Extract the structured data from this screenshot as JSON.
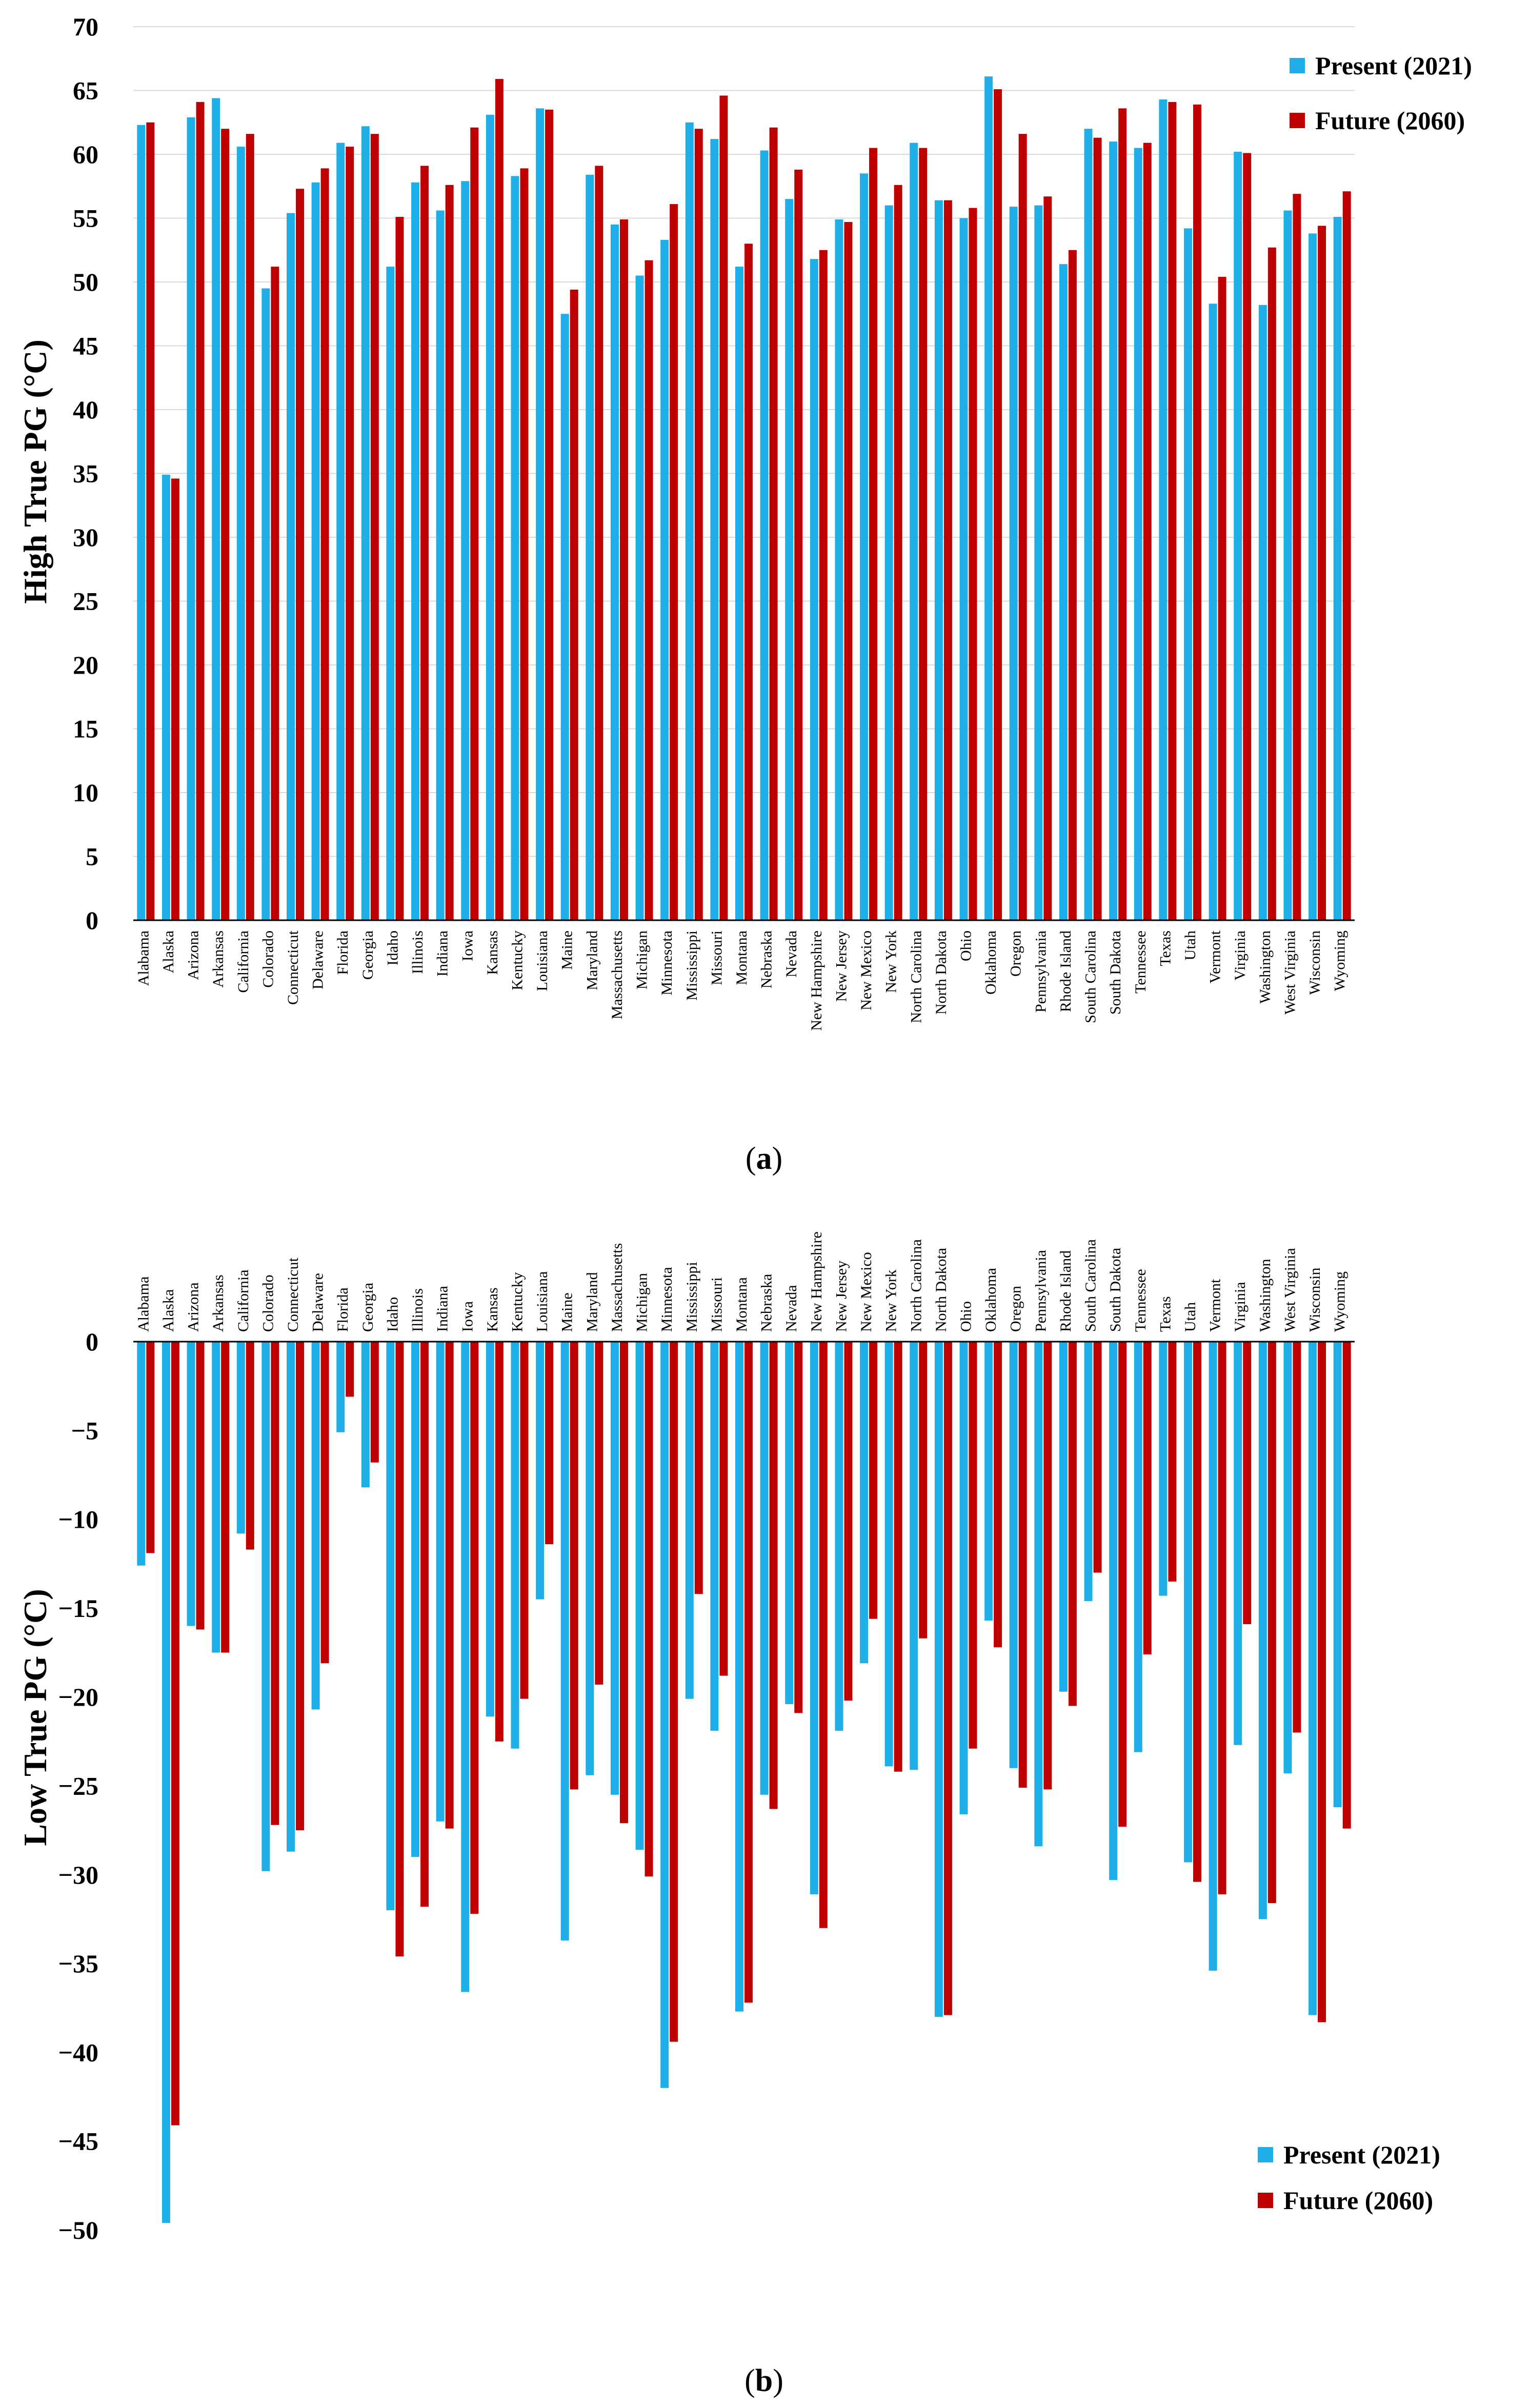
{
  "colors": {
    "present": "#1EAFE8",
    "future": "#C00000",
    "grid": "#D9D9D9",
    "axis": "#000000"
  },
  "captions": {
    "a_open": "(",
    "a_letter": "a",
    "a_close": ")",
    "b_open": "(",
    "b_letter": "b",
    "b_close": ")"
  },
  "chart_data": [
    {
      "type": "bar",
      "title": "",
      "ylabel": "High True PG (°C)",
      "xlabel": "",
      "ylim": [
        0,
        70
      ],
      "yticks": [
        0,
        5,
        10,
        15,
        20,
        25,
        30,
        35,
        40,
        45,
        50,
        55,
        60,
        65,
        70
      ],
      "grid": true,
      "legend_position": "top-right",
      "categories": [
        "Alabama",
        "Alaska",
        "Arizona",
        "Arkansas",
        "California",
        "Colorado",
        "Connecticut",
        "Delaware",
        "Florida",
        "Georgia",
        "Idaho",
        "Illinois",
        "Indiana",
        "Iowa",
        "Kansas",
        "Kentucky",
        "Louisiana",
        "Maine",
        "Maryland",
        "Massachusetts",
        "Michigan",
        "Minnesota",
        "Mississippi",
        "Missouri",
        "Montana",
        "Nebraska",
        "Nevada",
        "New Hampshire",
        "New Jersey",
        "New Mexico",
        "New York",
        "North Carolina",
        "North Dakota",
        "Ohio",
        "Oklahoma",
        "Oregon",
        "Pennsylvania",
        "Rhode Island",
        "South Carolina",
        "South Dakota",
        "Tennessee",
        "Texas",
        "Utah",
        "Vermont",
        "Virginia",
        "Washington",
        "West Virginia",
        "Wisconsin",
        "Wyoming"
      ],
      "series": [
        {
          "name": "Present (2021)",
          "values": [
            62.3,
            34.9,
            62.9,
            64.4,
            60.6,
            49.5,
            55.4,
            57.8,
            60.9,
            62.2,
            51.2,
            57.8,
            55.6,
            57.9,
            63.1,
            58.3,
            63.6,
            47.5,
            58.4,
            54.5,
            50.5,
            53.3,
            62.5,
            61.2,
            51.2,
            60.3,
            56.5,
            51.8,
            54.9,
            58.5,
            56.0,
            60.9,
            56.4,
            55.0,
            66.1,
            55.9,
            56.0,
            51.4,
            62.0,
            61.0,
            60.5,
            64.3,
            54.2,
            48.3,
            60.2,
            48.2,
            55.6,
            53.8,
            55.1
          ]
        },
        {
          "name": "Future (2060)",
          "values": [
            62.5,
            34.6,
            64.1,
            62.0,
            61.6,
            51.2,
            57.3,
            58.9,
            60.6,
            61.6,
            55.1,
            59.1,
            57.6,
            62.1,
            65.9,
            58.9,
            63.5,
            49.4,
            59.1,
            54.9,
            51.7,
            56.1,
            62.0,
            64.6,
            53.0,
            62.1,
            58.8,
            52.5,
            54.7,
            60.5,
            57.6,
            60.5,
            56.4,
            55.8,
            65.1,
            61.6,
            56.7,
            52.5,
            61.3,
            63.6,
            60.9,
            64.1,
            63.9,
            50.4,
            60.1,
            52.7,
            56.9,
            54.4,
            57.1
          ]
        }
      ]
    },
    {
      "type": "bar",
      "title": "",
      "ylabel": "Low True PG (°C)",
      "xlabel": "",
      "ylim": [
        -50,
        0
      ],
      "yticks": [
        0,
        -5,
        -10,
        -15,
        -20,
        -25,
        -30,
        -35,
        -40,
        -45,
        -50
      ],
      "grid": false,
      "legend_position": "bottom-right",
      "categories": [
        "Alabama",
        "Alaska",
        "Arizona",
        "Arkansas",
        "California",
        "Colorado",
        "Connecticut",
        "Delaware",
        "Florida",
        "Georgia",
        "Idaho",
        "Illinois",
        "Indiana",
        "Iowa",
        "Kansas",
        "Kentucky",
        "Louisiana",
        "Maine",
        "Maryland",
        "Massachusetts",
        "Michigan",
        "Minnesota",
        "Mississippi",
        "Missouri",
        "Montana",
        "Nebraska",
        "Nevada",
        "New Hampshire",
        "New Jersey",
        "New Mexico",
        "New York",
        "North Carolina",
        "North Dakota",
        "Ohio",
        "Oklahoma",
        "Oregon",
        "Pennsylvania",
        "Rhode Island",
        "South Carolina",
        "South Dakota",
        "Tennessee",
        "Texas",
        "Utah",
        "Vermont",
        "Virginia",
        "Washington",
        "West Virginia",
        "Wisconsin",
        "Wyoming"
      ],
      "series": [
        {
          "name": "Present (2021)",
          "values": [
            -12.6,
            -49.6,
            -16.0,
            -17.5,
            -10.8,
            -29.8,
            -28.7,
            -20.7,
            -5.1,
            -8.2,
            -32.0,
            -29.0,
            -27.0,
            -36.6,
            -21.1,
            -22.9,
            -14.5,
            -33.7,
            -24.4,
            -25.5,
            -28.6,
            -42.0,
            -20.1,
            -21.9,
            -37.7,
            -25.5,
            -20.4,
            -31.1,
            -21.9,
            -18.1,
            -23.9,
            -24.1,
            -38.0,
            -26.6,
            -15.7,
            -24.0,
            -28.4,
            -19.7,
            -14.6,
            -30.3,
            -23.1,
            -14.3,
            -29.3,
            -35.4,
            -22.7,
            -32.5,
            -24.3,
            -37.9,
            -26.2
          ]
        },
        {
          "name": "Future (2060)",
          "values": [
            -11.9,
            -44.1,
            -16.2,
            -17.5,
            -11.7,
            -27.2,
            -27.5,
            -18.1,
            -3.1,
            -6.8,
            -34.6,
            -31.8,
            -27.4,
            -32.2,
            -22.5,
            -20.1,
            -11.4,
            -25.2,
            -19.3,
            -27.1,
            -30.1,
            -39.4,
            -14.2,
            -18.8,
            -37.2,
            -26.3,
            -20.9,
            -33.0,
            -20.2,
            -15.6,
            -24.2,
            -16.7,
            -37.9,
            -22.9,
            -17.2,
            -25.1,
            -25.2,
            -20.5,
            -13.0,
            -27.3,
            -17.6,
            -13.5,
            -30.4,
            -31.1,
            -15.9,
            -31.6,
            -22.0,
            -38.3,
            -27.4
          ]
        }
      ]
    }
  ]
}
